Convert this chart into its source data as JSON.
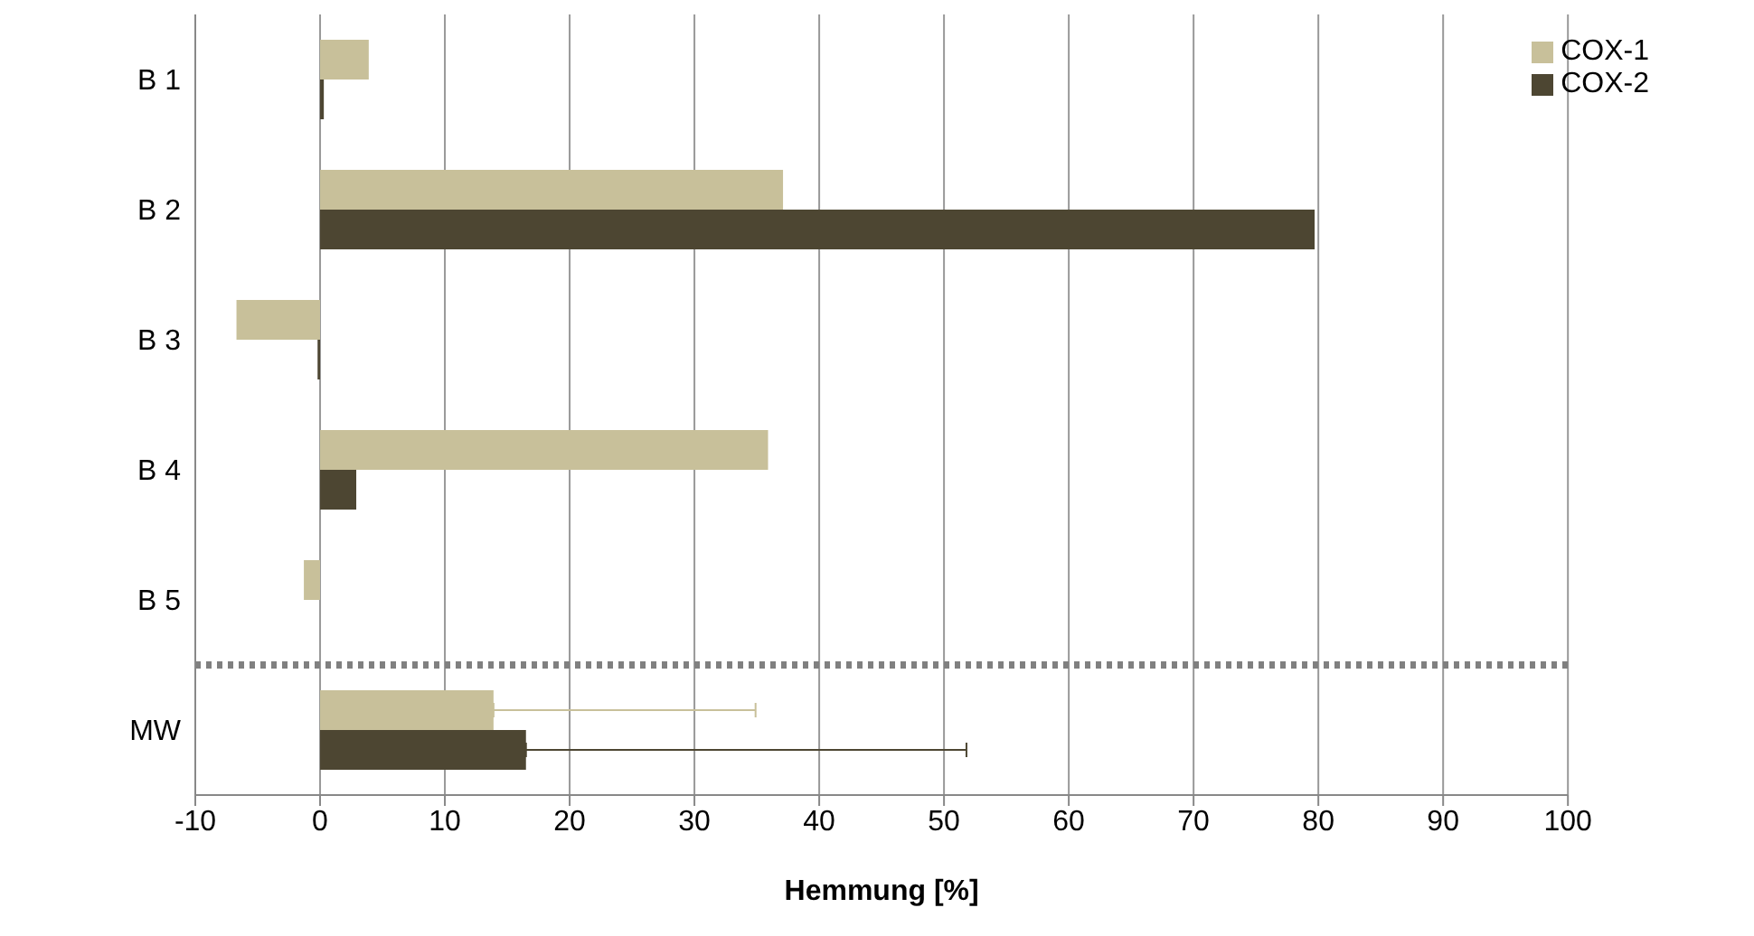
{
  "chart_data": {
    "type": "bar",
    "orientation": "horizontal",
    "xlabel": "Hemmung [%]",
    "categories": [
      "B 1",
      "B 2",
      "B 3",
      "B 4",
      "B 5",
      "MW"
    ],
    "series": [
      {
        "name": "COX-1",
        "color": "#c8c09a",
        "values": [
          3.9,
          37.1,
          -6.7,
          35.9,
          -1.3,
          13.9
        ],
        "errors": [
          null,
          null,
          null,
          null,
          null,
          [
            13.9,
            34.9
          ]
        ]
      },
      {
        "name": "COX-2",
        "color": "#4d4632",
        "values": [
          0.3,
          79.7,
          -0.2,
          2.9,
          null,
          16.5
        ],
        "errors": [
          null,
          null,
          null,
          null,
          null,
          [
            16.5,
            51.8
          ]
        ]
      }
    ],
    "xlim": [
      -10,
      100
    ],
    "xticks": [
      -10,
      0,
      10,
      20,
      30,
      40,
      50,
      60,
      70,
      80,
      90,
      100
    ],
    "grid": "x",
    "legend": "top right",
    "ref_lines": [
      {
        "axis": "y",
        "value": "MW",
        "color": "#808080",
        "line_style": "dotted"
      }
    ]
  }
}
